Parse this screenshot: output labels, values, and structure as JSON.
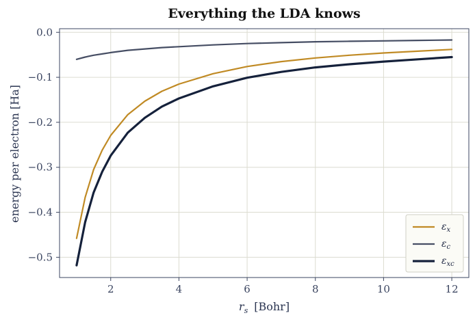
{
  "chart_data": {
    "type": "line",
    "title": "Everything the LDA knows",
    "xlabel_symbol": "r",
    "xlabel_sub": "s",
    "xlabel_unit": "[Bohr]",
    "ylabel": "energy per electron  [Ha]",
    "xlim": [
      0.5,
      12.5
    ],
    "ylim": [
      -0.545,
      0.008
    ],
    "x_ticks": [
      2,
      4,
      6,
      8,
      10,
      12
    ],
    "x_tick_labels": [
      "2",
      "4",
      "6",
      "8",
      "10",
      "12"
    ],
    "y_ticks": [
      0.0,
      -0.1,
      -0.2,
      -0.3,
      -0.4,
      -0.5
    ],
    "y_tick_labels": [
      "0.0",
      "−0.1",
      "−0.2",
      "−0.3",
      "−0.4",
      "−0.5"
    ],
    "grid": true,
    "legend_position": "lower-right",
    "x": [
      1,
      1.25,
      1.5,
      1.75,
      2,
      2.5,
      3,
      3.5,
      4,
      5,
      6,
      7,
      8,
      9,
      10,
      11,
      12
    ],
    "series": [
      {
        "name": "εx",
        "legend_base": "ε",
        "legend_sub": "x",
        "color": "#c08a24",
        "width": 2.2,
        "values": [
          -0.458,
          -0.367,
          -0.305,
          -0.262,
          -0.229,
          -0.183,
          -0.153,
          -0.131,
          -0.115,
          -0.092,
          -0.076,
          -0.065,
          -0.057,
          -0.051,
          -0.046,
          -0.042,
          -0.038
        ]
      },
      {
        "name": "εc",
        "legend_base": "ε",
        "legend_sub": "c",
        "color": "#454d63",
        "width": 2.2,
        "values": [
          -0.06,
          -0.055,
          -0.051,
          -0.048,
          -0.045,
          -0.04,
          -0.037,
          -0.034,
          -0.032,
          -0.028,
          -0.025,
          -0.023,
          -0.021,
          -0.02,
          -0.019,
          -0.018,
          -0.017
        ]
      },
      {
        "name": "εxc",
        "legend_base": "ε",
        "legend_sub": "xc",
        "color": "#15213b",
        "width": 3.2,
        "values": [
          -0.518,
          -0.422,
          -0.356,
          -0.31,
          -0.274,
          -0.223,
          -0.19,
          -0.165,
          -0.147,
          -0.12,
          -0.101,
          -0.088,
          -0.078,
          -0.071,
          -0.065,
          -0.06,
          -0.055
        ]
      }
    ],
    "colors": {
      "grid": "#dcdcd0",
      "spine": "#3b4560",
      "legend_bg": "#fbfbf6",
      "legend_border": "#cfcfc4"
    }
  }
}
